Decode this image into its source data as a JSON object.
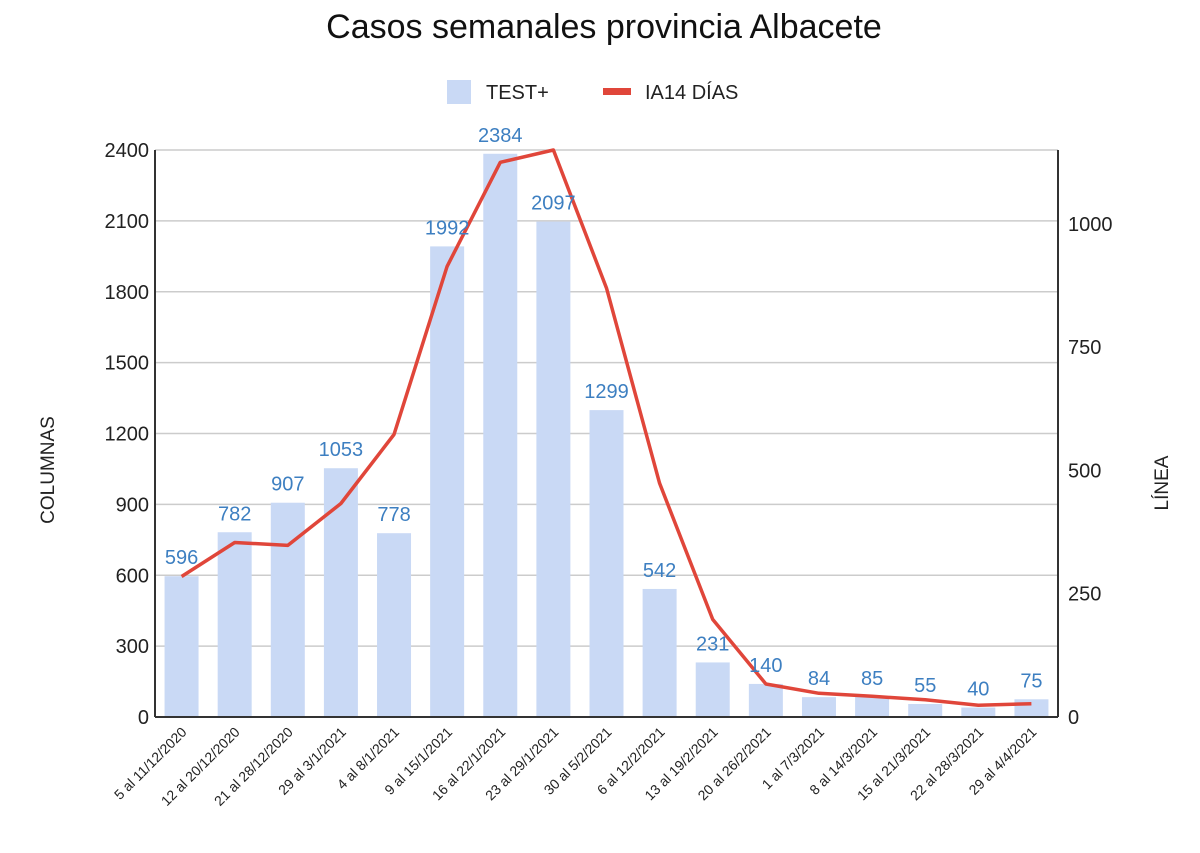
{
  "chart_data": {
    "type": "bar",
    "title": "Casos semanales provincia Albacete",
    "xlabel": "",
    "ylabel": "COLUMNAS",
    "y2label": "LÍNEA",
    "ylim": [
      0,
      2400
    ],
    "y2lim": [
      0,
      1150
    ],
    "yticks": [
      0,
      300,
      600,
      900,
      1200,
      1500,
      1800,
      2100,
      2400
    ],
    "y2ticks": [
      0,
      250,
      500,
      750,
      1000
    ],
    "grid": true,
    "legend_position": "top-center",
    "colors": {
      "bars": "#c9d9f5",
      "line": "#e0463a",
      "data_labels": "#3d7fc1"
    },
    "categories": [
      "5 al 11/12/2020",
      "12 al 20/12/2020",
      "21 al 28/12/2020",
      "29 al 3/1/2021",
      "4 al 8/1/2021",
      "9 al 15/1/2021",
      "16 al 22/1/2021",
      "23 al 29/1/2021",
      "30 al 5/2/2021",
      "6 al 12/2/2021",
      "13 al 19/2/2021",
      "20 al 26/2/2021",
      "1 al 7/3/2021",
      "8 al 14/3/2021",
      "15 al 21/3/2021",
      "22 al 28/3/2021",
      "29 al 4/4/2021"
    ],
    "series": [
      {
        "name": "TEST+",
        "type": "bar",
        "axis": "left",
        "values": [
          596,
          782,
          907,
          1053,
          778,
          1992,
          2384,
          2097,
          1299,
          542,
          231,
          140,
          84,
          85,
          55,
          40,
          75
        ],
        "labels": [
          "596",
          "782",
          "907",
          "1053",
          "778",
          "1992",
          "2384",
          "2097",
          "1299",
          "542",
          "231",
          "140",
          "84",
          "85",
          "55",
          "40",
          "75"
        ]
      },
      {
        "name": "IA14 DÍAS",
        "type": "line",
        "axis": "right",
        "values": [
          285,
          354,
          348,
          433,
          573,
          914,
          1125,
          1150,
          870,
          474,
          198,
          67,
          48,
          42,
          35,
          24,
          27
        ]
      }
    ]
  }
}
